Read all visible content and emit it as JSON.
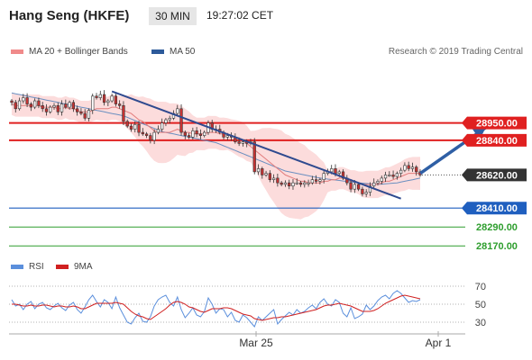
{
  "header": {
    "title": "Hang Seng (HKFE)",
    "timeframe": "30 MIN",
    "time": "19:27:02 CET"
  },
  "legend": {
    "ma20_bb": {
      "label": "MA 20 + Bollinger Bands",
      "color": "#f08a8a"
    },
    "ma50": {
      "label": "MA 50",
      "color": "#2d5a9a"
    }
  },
  "watermark": "Research © 2019 Trading Central",
  "rsi_legend": {
    "rsi": {
      "label": "RSI",
      "color": "#5b8fdc"
    },
    "ma9": {
      "label": "9MA",
      "color": "#d02020"
    }
  },
  "colors": {
    "resistance": "#e02020",
    "support_blue": "#1f5fbf",
    "support_green": "#2e9e2e",
    "current": "#333333",
    "candle_up": "#ffffff",
    "candle_down": "#c83232"
  },
  "chart_data": {
    "type": "candlestick",
    "price_ylim": [
      28120,
      29330
    ],
    "x_ticks": [
      "Mar 25",
      "Apr 1"
    ],
    "levels": [
      {
        "label": "28950.00",
        "value": 28950,
        "kind": "resistance"
      },
      {
        "label": "28840.00",
        "value": 28840,
        "kind": "resistance"
      },
      {
        "label": "28620.00",
        "value": 28620,
        "kind": "current"
      },
      {
        "label": "28410.00",
        "value": 28410,
        "kind": "support_blue"
      },
      {
        "label": "28290.00",
        "value": 28290,
        "kind": "support_green"
      },
      {
        "label": "28170.00",
        "value": 28170,
        "kind": "support_green"
      }
    ],
    "close": [
      29080,
      29040,
      29090,
      29110,
      29070,
      29050,
      29090,
      29060,
      29040,
      29020,
      29050,
      29060,
      29020,
      29070,
      29050,
      29080,
      29040,
      29020,
      29010,
      28980,
      29030,
      29120,
      29110,
      29130,
      29080,
      29090,
      29120,
      29070,
      29060,
      28960,
      28930,
      28910,
      28940,
      28890,
      28880,
      28870,
      28840,
      28890,
      28910,
      28950,
      28970,
      28980,
      29010,
      29040,
      28890,
      28870,
      28860,
      28900,
      28880,
      28870,
      28890,
      28950,
      28910,
      28910,
      28890,
      28860,
      28870,
      28860,
      28830,
      28820,
      28830,
      28820,
      28830,
      28640,
      28660,
      28620,
      28630,
      28590,
      28600,
      28570,
      28560,
      28570,
      28550,
      28570,
      28570,
      28560,
      28570,
      28570,
      28590,
      28580,
      28590,
      28630,
      28640,
      28660,
      28630,
      28640,
      28600,
      28570,
      28530,
      28560,
      28530,
      28500,
      28510,
      28550,
      28570,
      28580,
      28600,
      28620,
      28620,
      28610,
      28630,
      28650,
      28680,
      28660,
      28670,
      28640,
      28620
    ],
    "ma20": [
      29070,
      29060,
      29060,
      29060,
      29060,
      29060,
      29060,
      29060,
      29050,
      29050,
      29050,
      29050,
      29040,
      29040,
      29050,
      29040,
      29040,
      29030,
      29020,
      29020,
      29020,
      29030,
      29040,
      29040,
      29040,
      29040,
      29050,
      29050,
      29040,
      29030,
      29020,
      29010,
      28990,
      28970,
      28960,
      28940,
      28920,
      28900,
      28890,
      28890,
      28890,
      28890,
      28900,
      28910,
      28900,
      28890,
      28890,
      28880,
      28880,
      28880,
      28880,
      28890,
      28890,
      28890,
      28880,
      28880,
      28880,
      28870,
      28860,
      28850,
      28840,
      28820,
      28800,
      28780,
      28760,
      28740,
      28720,
      28700,
      28680,
      28660,
      28640,
      28620,
      28610,
      28600,
      28590,
      28580,
      28580,
      28570,
      28570,
      28570,
      28570,
      28580,
      28580,
      28590,
      28590,
      28600,
      28600,
      28590,
      28580,
      28580,
      28570,
      28560,
      28560,
      28560,
      28560,
      28560,
      28570,
      28580,
      28580,
      28590,
      28600,
      28610,
      28620,
      28630,
      28630,
      28630,
      28630
    ],
    "ma50": [
      29140,
      29135,
      29130,
      29125,
      29120,
      29115,
      29110,
      29105,
      29100,
      29095,
      29090,
      29085,
      29080,
      29075,
      29070,
      29065,
      29060,
      29055,
      29050,
      29045,
      29040,
      29035,
      29030,
      29025,
      29020,
      29015,
      29010,
      29005,
      29000,
      28995,
      28985,
      28975,
      28965,
      28955,
      28945,
      28935,
      28925,
      28915,
      28905,
      28895,
      28890,
      28885,
      28880,
      28875,
      28870,
      28865,
      28860,
      28855,
      28850,
      28845,
      28840,
      28835,
      28830,
      28825,
      28815,
      28805,
      28795,
      28785,
      28775,
      28765,
      28755,
      28745,
      28735,
      28725,
      28715,
      28705,
      28695,
      28685,
      28675,
      28665,
      28655,
      28645,
      28640,
      28635,
      28630,
      28625,
      28620,
      28615,
      28610,
      28605,
      28600,
      28597,
      28594,
      28591,
      28588,
      28585,
      28582,
      28579,
      28576,
      28573,
      28570,
      28568,
      28566,
      28564,
      28562,
      28560,
      28562,
      28564,
      28566,
      28568,
      28570,
      28575,
      28580,
      28585,
      28590,
      28595,
      28600
    ],
    "trendline": {
      "start": {
        "index": 26,
        "value": 29150
      },
      "end": {
        "index": 101,
        "value": 28470
      }
    },
    "forecast_arrow": {
      "start": {
        "index": 106,
        "value": 28630
      },
      "end": {
        "index": 123,
        "value": 28920
      }
    },
    "rsi_ylim": [
      20,
      80
    ],
    "rsi_ticks": [
      "70",
      "50",
      "30"
    ],
    "rsi": [
      55,
      48,
      50,
      44,
      50,
      53,
      45,
      50,
      52,
      46,
      44,
      48,
      51,
      46,
      43,
      49,
      52,
      44,
      40,
      47,
      55,
      60,
      53,
      47,
      55,
      52,
      45,
      58,
      46,
      38,
      30,
      28,
      35,
      40,
      31,
      30,
      36,
      48,
      55,
      58,
      60,
      52,
      48,
      58,
      44,
      35,
      40,
      46,
      38,
      36,
      42,
      57,
      50,
      40,
      45,
      44,
      36,
      41,
      32,
      30,
      38,
      35,
      30,
      25,
      36,
      32,
      36,
      40,
      44,
      28,
      33,
      37,
      41,
      38,
      44,
      40,
      42,
      46,
      49,
      45,
      52,
      56,
      50,
      48,
      55,
      52,
      40,
      36,
      46,
      34,
      36,
      39,
      49,
      44,
      48,
      54,
      58,
      60,
      56,
      62,
      65,
      62,
      57,
      52,
      54,
      53,
      55
    ],
    "rsi_ma": [
      50,
      50,
      49,
      48,
      48,
      49,
      48,
      48,
      49,
      49,
      48,
      47,
      48,
      48,
      47,
      47,
      48,
      47,
      45,
      45,
      47,
      49,
      51,
      51,
      51,
      51,
      51,
      52,
      51,
      50,
      46,
      42,
      39,
      37,
      36,
      34,
      33,
      36,
      39,
      42,
      45,
      49,
      52,
      53,
      52,
      50,
      47,
      46,
      44,
      42,
      41,
      43,
      45,
      45,
      45,
      46,
      46,
      45,
      43,
      41,
      39,
      38,
      37,
      34,
      33,
      32,
      33,
      34,
      35,
      35,
      36,
      36,
      37,
      38,
      39,
      40,
      41,
      42,
      43,
      44,
      46,
      48,
      49,
      49,
      50,
      51,
      50,
      49,
      48,
      46,
      44,
      42,
      42,
      42,
      43,
      45,
      48,
      51,
      53,
      55,
      57,
      59,
      60,
      59,
      58,
      57,
      56
    ]
  }
}
